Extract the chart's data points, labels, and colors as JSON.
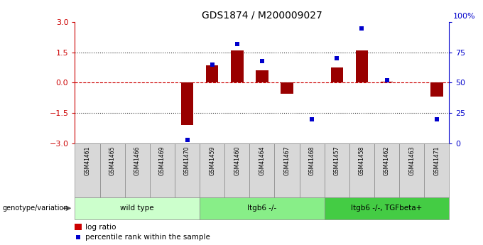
{
  "title": "GDS1874 / M200009027",
  "samples": [
    "GSM41461",
    "GSM41465",
    "GSM41466",
    "GSM41469",
    "GSM41470",
    "GSM41459",
    "GSM41460",
    "GSM41464",
    "GSM41467",
    "GSM41468",
    "GSM41457",
    "GSM41458",
    "GSM41462",
    "GSM41463",
    "GSM41471"
  ],
  "log_ratio": [
    0.0,
    0.0,
    0.0,
    0.0,
    -2.1,
    0.85,
    1.6,
    0.6,
    -0.55,
    0.0,
    0.75,
    1.6,
    0.05,
    0.0,
    -0.7
  ],
  "percentile": [
    null,
    null,
    null,
    null,
    3,
    65,
    82,
    68,
    null,
    20,
    70,
    95,
    52,
    null,
    20
  ],
  "groups": [
    {
      "label": "wild type",
      "start": 0,
      "end": 5,
      "color": "#ccffcc"
    },
    {
      "label": "Itgb6 -/-",
      "start": 5,
      "end": 10,
      "color": "#88ee88"
    },
    {
      "label": "Itgb6 -/-, TGFbeta+",
      "start": 10,
      "end": 15,
      "color": "#44cc44"
    }
  ],
  "ylim_left": [
    -3,
    3
  ],
  "ylim_right": [
    0,
    100
  ],
  "yticks_left": [
    -3,
    -1.5,
    0,
    1.5,
    3
  ],
  "yticks_right": [
    0,
    25,
    50,
    75,
    100
  ],
  "bar_color": "#990000",
  "dot_color": "#0000cc",
  "hline0_color": "#cc0000",
  "hline_color": "#333333",
  "sample_box_color": "#d8d8d8",
  "sample_box_edge": "#888888"
}
